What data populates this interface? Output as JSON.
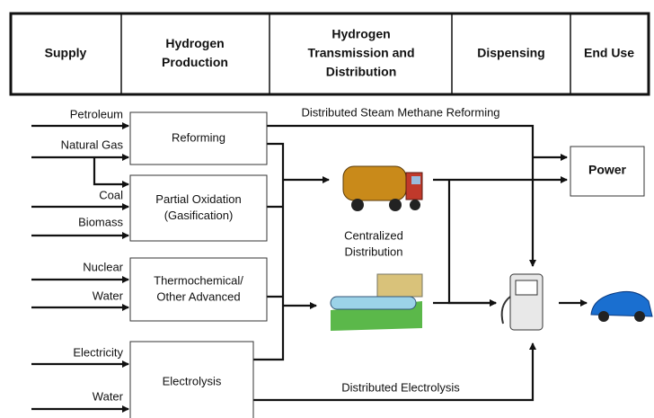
{
  "header": {
    "columns": [
      [
        "Supply"
      ],
      [
        "Hydrogen",
        "Production"
      ],
      [
        "Hydrogen",
        "Transmission and",
        "Distribution"
      ],
      [
        "Dispensing"
      ],
      [
        "End Use"
      ]
    ]
  },
  "inputs": [
    "Petroleum",
    "Natural Gas",
    "Coal",
    "Biomass",
    "Nuclear",
    "Water",
    "Electricity",
    "Water"
  ],
  "processes": [
    [
      "Reforming"
    ],
    [
      "Partial Oxidation",
      "(Gasification)"
    ],
    [
      "Thermochemical/",
      "Other Advanced"
    ],
    [
      "Electrolysis"
    ]
  ],
  "labels": {
    "steam": "Distributed Steam Methane Reforming",
    "central": [
      "Centralized",
      "Distribution"
    ],
    "electrolysis": "Distributed Electrolysis"
  },
  "end_use": {
    "power": "Power"
  }
}
